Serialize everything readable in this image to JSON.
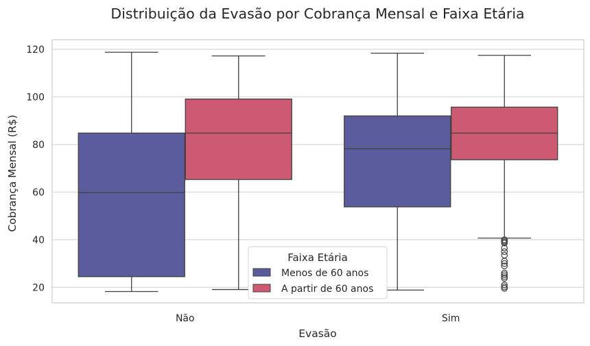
{
  "chart_data": {
    "type": "box",
    "title": "Distribuição da Evasão por Cobrança Mensal e Faixa Etária",
    "xlabel": "Evasão",
    "ylabel": "Cobrança Mensal (R$)",
    "categories": [
      "Não",
      "Sim"
    ],
    "ylim": [
      13.5,
      124
    ],
    "yticks": [
      20,
      40,
      60,
      80,
      100,
      120
    ],
    "grid": true,
    "legend": {
      "title": "Faixa Etária",
      "position": "bottom-center"
    },
    "series": [
      {
        "name": "Menos de 60 anos",
        "color": "#5a5c9e",
        "boxes": [
          {
            "category": "Não",
            "min": 18.25,
            "q1": 24.5,
            "median": 59.8,
            "q3": 84.8,
            "max": 118.75,
            "outliers": []
          },
          {
            "category": "Sim",
            "min": 18.85,
            "q1": 53.8,
            "median": 78.2,
            "q3": 92.0,
            "max": 118.35,
            "outliers": []
          }
        ]
      },
      {
        "name": "A partir de 60 anos",
        "color": "#cc5a72",
        "boxes": [
          {
            "category": "Não",
            "min": 19.1,
            "q1": 65.3,
            "median": 84.8,
            "q3": 99.1,
            "max": 117.2,
            "outliers": []
          },
          {
            "category": "Sim",
            "min": 40.7,
            "q1": 73.6,
            "median": 84.8,
            "q3": 95.7,
            "max": 117.45,
            "outliers": [
              40.0,
              39.5,
              39.0,
              38.6,
              36.5,
              35.0,
              33.5,
              31.0,
              30.0,
              29.0,
              26.0,
              25.3,
              24.5,
              23.8,
              21.0,
              20.2,
              19.6
            ]
          }
        ]
      }
    ]
  }
}
